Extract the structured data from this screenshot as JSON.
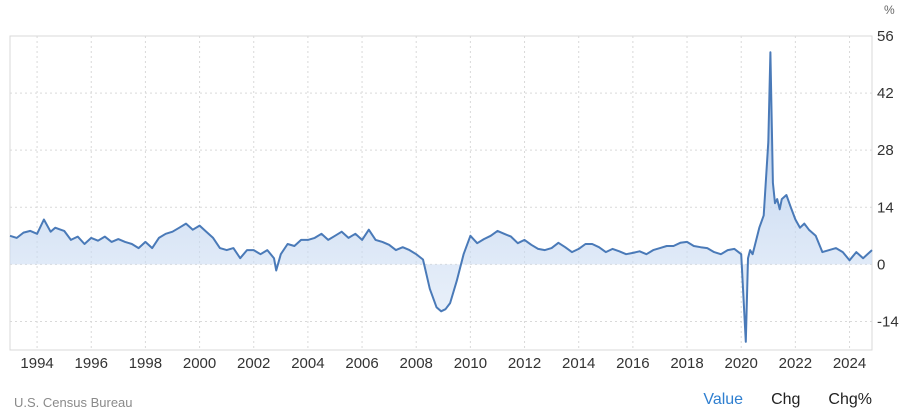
{
  "unit_label": "%",
  "source": "U.S. Census Bureau",
  "tabs": [
    {
      "label": "Value",
      "active": true
    },
    {
      "label": "Chg",
      "active": false
    },
    {
      "label": "Chg%",
      "active": false
    }
  ],
  "colors": {
    "line": "#4a7ab8",
    "fill_top": "#9fbde6",
    "fill_bottom": "#dbe7f7",
    "grid": "#d9d9d9",
    "active_tab": "#2f7fd0"
  },
  "chart_data": {
    "type": "area",
    "xlabel": "",
    "ylabel": "",
    "xlim": [
      1993.0,
      2024.83
    ],
    "ylim": [
      -21,
      56
    ],
    "y_ticks": [
      56,
      42,
      28,
      14,
      0,
      -14
    ],
    "x_ticks": [
      "1994",
      "1996",
      "1998",
      "2000",
      "2002",
      "2004",
      "2006",
      "2008",
      "2010",
      "2012",
      "2014",
      "2016",
      "2018",
      "2020",
      "2022",
      "2024"
    ],
    "grid": true,
    "series": [
      {
        "x": [
          1993.0,
          1993.25,
          1993.5,
          1993.75,
          1994.0,
          1994.25,
          1994.5,
          1994.67,
          1994.83,
          1995.0,
          1995.25,
          1995.5,
          1995.75,
          1996.0,
          1996.25,
          1996.5,
          1996.75,
          1997.0,
          1997.25,
          1997.5,
          1997.75,
          1998.0,
          1998.25,
          1998.5,
          1998.75,
          1999.0,
          1999.25,
          1999.5,
          1999.75,
          2000.0,
          2000.25,
          2000.5,
          2000.75,
          2001.0,
          2001.25,
          2001.5,
          2001.75,
          2002.0,
          2002.25,
          2002.5,
          2002.75,
          2002.83,
          2003.0,
          2003.25,
          2003.5,
          2003.75,
          2004.0,
          2004.25,
          2004.5,
          2004.75,
          2005.0,
          2005.25,
          2005.5,
          2005.75,
          2006.0,
          2006.25,
          2006.5,
          2006.75,
          2007.0,
          2007.25,
          2007.5,
          2007.75,
          2008.0,
          2008.25,
          2008.5,
          2008.75,
          2008.92,
          2009.08,
          2009.25,
          2009.5,
          2009.75,
          2010.0,
          2010.25,
          2010.5,
          2010.75,
          2011.0,
          2011.25,
          2011.5,
          2011.75,
          2012.0,
          2012.25,
          2012.5,
          2012.75,
          2013.0,
          2013.25,
          2013.5,
          2013.75,
          2014.0,
          2014.25,
          2014.5,
          2014.75,
          2015.0,
          2015.25,
          2015.5,
          2015.75,
          2016.0,
          2016.25,
          2016.5,
          2016.75,
          2017.0,
          2017.25,
          2017.5,
          2017.75,
          2018.0,
          2018.25,
          2018.5,
          2018.75,
          2019.0,
          2019.25,
          2019.5,
          2019.75,
          2020.0,
          2020.17,
          2020.25,
          2020.33,
          2020.42,
          2020.5,
          2020.67,
          2020.83,
          2021.0,
          2021.08,
          2021.17,
          2021.25,
          2021.33,
          2021.42,
          2021.5,
          2021.67,
          2021.83,
          2022.0,
          2022.17,
          2022.33,
          2022.5,
          2022.75,
          2023.0,
          2023.25,
          2023.5,
          2023.75,
          2024.0,
          2024.25,
          2024.5,
          2024.83
        ],
        "values": [
          7,
          6.5,
          7.8,
          8.2,
          7.5,
          11,
          8,
          9,
          8.6,
          8.2,
          6,
          6.8,
          5,
          6.5,
          5.8,
          6.8,
          5.5,
          6.2,
          5.5,
          5,
          4,
          5.5,
          4,
          6.5,
          7.5,
          8,
          9,
          10,
          8.5,
          9.5,
          8,
          6.5,
          4,
          3.5,
          4,
          1.5,
          3.5,
          3.5,
          2.5,
          3.5,
          1.5,
          -1.5,
          2.5,
          5,
          4.5,
          6,
          6,
          6.5,
          7.5,
          6,
          7,
          8,
          6.5,
          7.5,
          6,
          8.5,
          6,
          5.5,
          4.8,
          3.5,
          4.2,
          3.5,
          2.5,
          1.2,
          -6,
          -10.5,
          -11.5,
          -11,
          -9.5,
          -4,
          2.5,
          7,
          5.2,
          6.2,
          7,
          8.2,
          7.5,
          6.8,
          5.2,
          6,
          4.8,
          3.8,
          3.5,
          4,
          5.3,
          4.2,
          3,
          3.8,
          5,
          5,
          4.2,
          3,
          3.8,
          3.2,
          2.5,
          2.8,
          3.2,
          2.5,
          3.5,
          4,
          4.5,
          4.5,
          5.3,
          5.5,
          4.5,
          4.2,
          4,
          3,
          2.5,
          3.5,
          3.8,
          2.5,
          -19,
          1.5,
          3.5,
          2.5,
          4.5,
          9,
          12,
          30,
          52,
          20,
          15,
          16,
          13.5,
          16,
          17,
          14,
          11,
          9,
          10,
          8.5,
          7,
          3,
          3.5,
          4,
          3,
          1,
          3,
          1.5,
          3.5
        ]
      }
    ]
  }
}
